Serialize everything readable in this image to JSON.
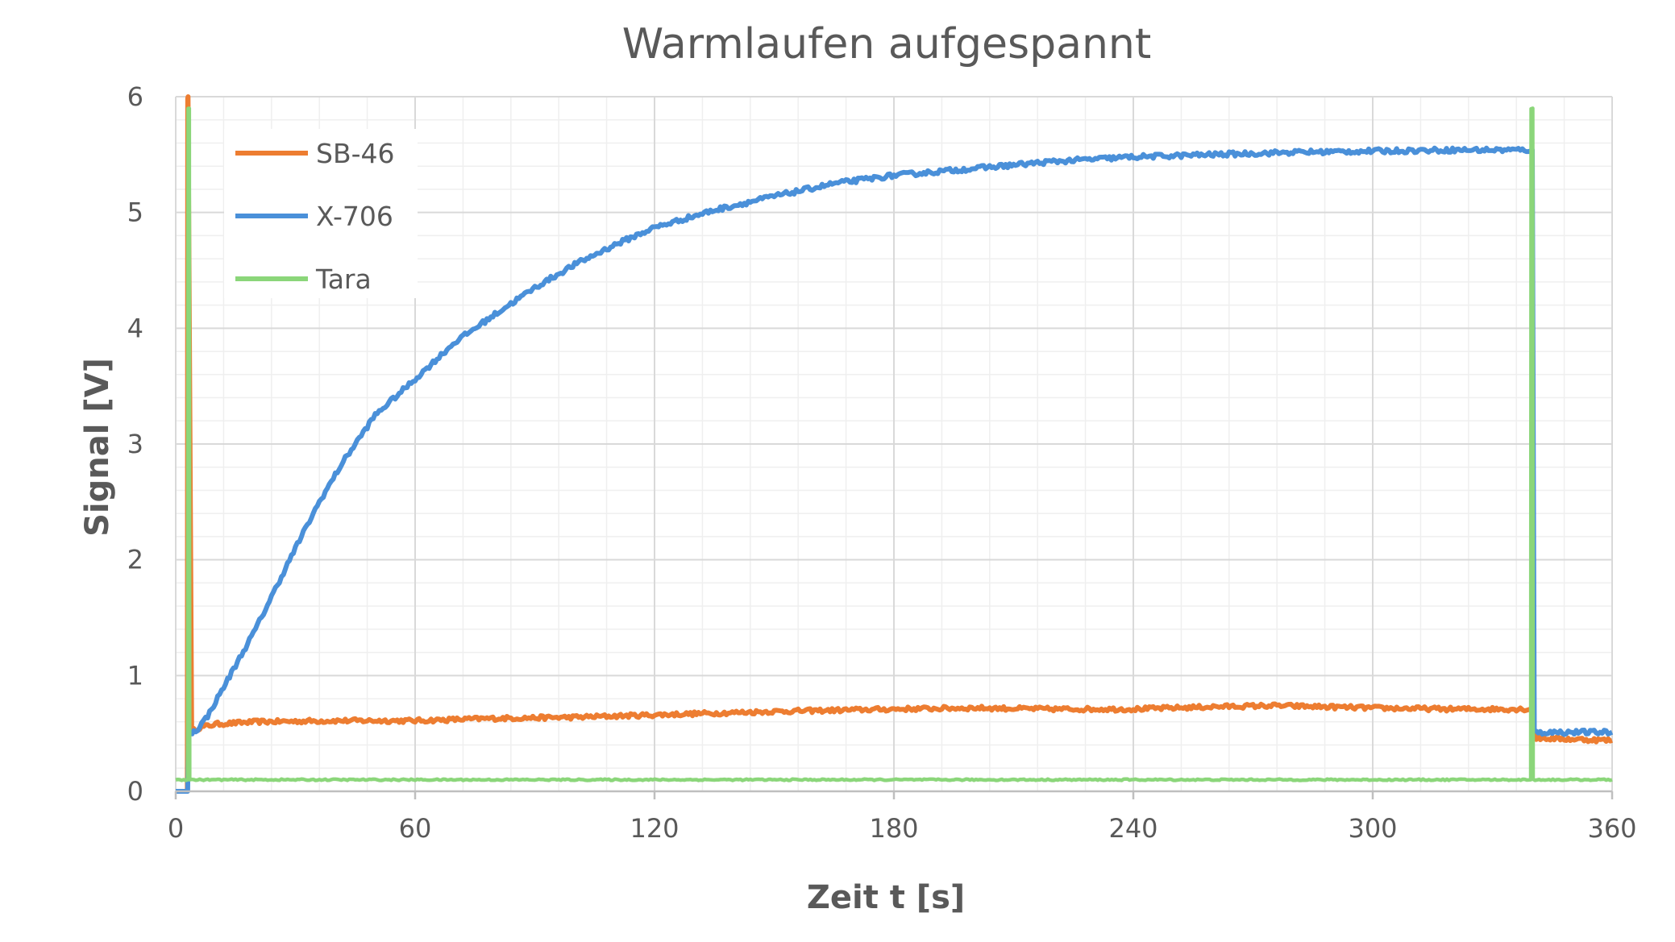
{
  "chart_data": {
    "type": "line",
    "title": "Warmlaufen aufgespannt",
    "xlabel": "Zeit t [s]",
    "ylabel": "Signal [V]",
    "xlim": [
      0,
      360
    ],
    "ylim": [
      0,
      6
    ],
    "x_ticks": [
      "0",
      "60",
      "120",
      "180",
      "240",
      "300",
      "360"
    ],
    "y_ticks": [
      "0",
      "1",
      "2",
      "3",
      "4",
      "5",
      "6"
    ],
    "grid": true,
    "minor_grid": true,
    "legend_position": "top-left",
    "series": [
      {
        "name": "SB-46",
        "color": "#ED7D31",
        "points": [
          [
            0,
            0
          ],
          [
            2.9,
            0
          ],
          [
            3,
            6
          ],
          [
            3.1,
            6
          ],
          [
            4,
            0.52
          ],
          [
            6,
            0.55
          ],
          [
            10,
            0.58
          ],
          [
            20,
            0.6
          ],
          [
            40,
            0.61
          ],
          [
            60,
            0.61
          ],
          [
            80,
            0.63
          ],
          [
            100,
            0.64
          ],
          [
            120,
            0.66
          ],
          [
            150,
            0.69
          ],
          [
            180,
            0.71
          ],
          [
            200,
            0.72
          ],
          [
            220,
            0.71
          ],
          [
            240,
            0.71
          ],
          [
            260,
            0.73
          ],
          [
            275,
            0.74
          ],
          [
            300,
            0.72
          ],
          [
            320,
            0.71
          ],
          [
            340,
            0.71
          ],
          [
            340.5,
            0.46
          ],
          [
            360,
            0.44
          ]
        ]
      },
      {
        "name": "X-706",
        "color": "#4A90D9",
        "points": [
          [
            0,
            0
          ],
          [
            3,
            0
          ],
          [
            3.2,
            0.5
          ],
          [
            5,
            0.52
          ],
          [
            8,
            0.65
          ],
          [
            12,
            0.9
          ],
          [
            16,
            1.15
          ],
          [
            20,
            1.4
          ],
          [
            25,
            1.75
          ],
          [
            30,
            2.1
          ],
          [
            36,
            2.5
          ],
          [
            42,
            2.85
          ],
          [
            50,
            3.25
          ],
          [
            60,
            3.56
          ],
          [
            70,
            3.88
          ],
          [
            80,
            4.12
          ],
          [
            90,
            4.35
          ],
          [
            100,
            4.55
          ],
          [
            110,
            4.72
          ],
          [
            120,
            4.87
          ],
          [
            135,
            5.02
          ],
          [
            150,
            5.14
          ],
          [
            165,
            5.25
          ],
          [
            180,
            5.32
          ],
          [
            200,
            5.38
          ],
          [
            220,
            5.44
          ],
          [
            240,
            5.48
          ],
          [
            260,
            5.5
          ],
          [
            280,
            5.52
          ],
          [
            300,
            5.53
          ],
          [
            320,
            5.54
          ],
          [
            340,
            5.54
          ],
          [
            340.5,
            0.51
          ],
          [
            360,
            0.51
          ]
        ]
      },
      {
        "name": "Tara",
        "color": "#8BD67A",
        "points": [
          [
            0,
            0.1
          ],
          [
            3,
            0.1
          ],
          [
            3.1,
            5.9
          ],
          [
            3.4,
            5.9
          ],
          [
            3.5,
            0.1
          ],
          [
            339.6,
            0.1
          ],
          [
            339.7,
            5.9
          ],
          [
            340.1,
            5.9
          ],
          [
            340.2,
            0.1
          ],
          [
            360,
            0.1
          ]
        ]
      }
    ]
  }
}
